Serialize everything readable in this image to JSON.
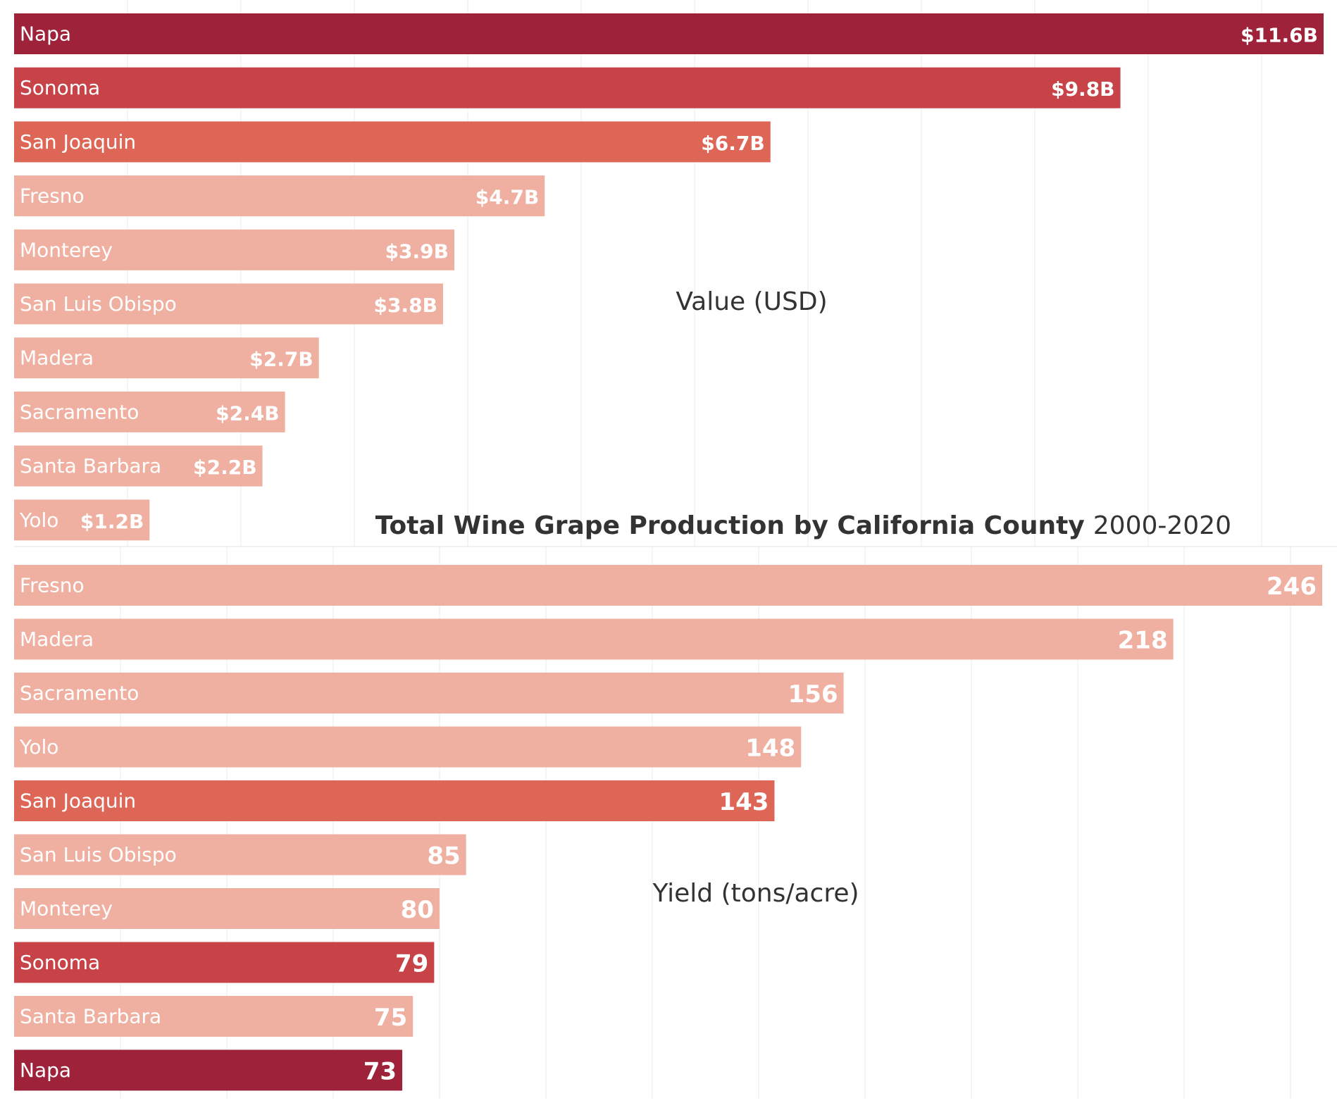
{
  "chart_data": [
    {
      "type": "bar",
      "orientation": "horizontal",
      "axis_label": "Value (USD)",
      "categories": [
        "Napa",
        "Sonoma",
        "San Joaquin",
        "Fresno",
        "Monterey",
        "San Luis Obispo",
        "Madera",
        "Sacramento",
        "Santa Barbara",
        "Yolo"
      ],
      "values": [
        11.6,
        9.8,
        6.7,
        4.7,
        3.9,
        3.8,
        2.7,
        2.4,
        2.2,
        1.2
      ],
      "value_unit": "billion USD",
      "data_labels": [
        "$11.6B",
        "$9.8B",
        "$6.7B",
        "$4.7B",
        "$3.9B",
        "$3.8B",
        "$2.7B",
        "$2.4B",
        "$2.2B",
        "$1.2B"
      ],
      "colors": [
        "#9e233a",
        "#c74347",
        "#de6657",
        "#f0b0a1",
        "#f0b0a1",
        "#f0b0a1",
        "#f0b0a1",
        "#f0b0a1",
        "#f0b0a1",
        "#f0b0a1"
      ],
      "grid": "vertical"
    },
    {
      "type": "bar",
      "orientation": "horizontal",
      "axis_label": "Yield (tons/acre)",
      "categories": [
        "Fresno",
        "Madera",
        "Sacramento",
        "Yolo",
        "San Joaquin",
        "San Luis Obispo",
        "Monterey",
        "Sonoma",
        "Santa Barbara",
        "Napa"
      ],
      "values": [
        246,
        218,
        156,
        148,
        143,
        85,
        80,
        79,
        75,
        73
      ],
      "data_labels": [
        "246",
        "218",
        "156",
        "148",
        "143",
        "85",
        "80",
        "79",
        "75",
        "73"
      ],
      "colors": [
        "#f0b0a1",
        "#f0b0a1",
        "#f0b0a1",
        "#f0b0a1",
        "#de6657",
        "#f0b0a1",
        "#f0b0a1",
        "#c74347",
        "#f0b0a1",
        "#9e233a"
      ],
      "grid": "vertical"
    }
  ],
  "title": {
    "bold": "Total Wine Grape Production by California County",
    "light": "2000-2020"
  }
}
